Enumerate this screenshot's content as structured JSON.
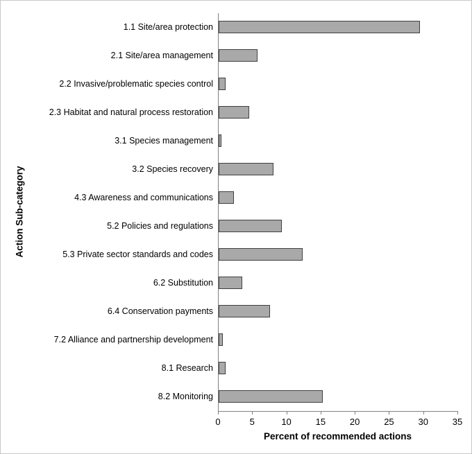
{
  "figure": {
    "background": "#ffffff",
    "border_color": "#c8c8c8"
  },
  "chart_data": {
    "type": "bar",
    "orientation": "horizontal",
    "title": "",
    "xlabel": "Percent of recommended actions",
    "ylabel": "Action Sub-category",
    "categories": [
      "1.1 Site/area protection",
      "2.1 Site/area management",
      "2.2 Invasive/problematic species control",
      "2.3 Habitat and natural process restoration",
      "3.1 Species management",
      "3.2 Species recovery",
      "4.3 Awareness and communications",
      "5.2 Policies and regulations",
      "5.3 Private sector standards and codes",
      "6.2 Substitution",
      "6.4 Conservation payments",
      "7.2 Alliance and partnership development",
      "8.1 Research",
      "8.2 Monitoring"
    ],
    "values": [
      29.4,
      5.7,
      1.0,
      4.5,
      0.4,
      8.0,
      2.2,
      9.2,
      12.3,
      3.4,
      7.5,
      0.6,
      1.0,
      15.2
    ],
    "xlim": [
      0,
      35
    ],
    "xticks": [
      0,
      5,
      10,
      15,
      20,
      25,
      30,
      35
    ],
    "grid": false,
    "legend_position": "none",
    "bar_fill": "#a9a9a9",
    "bar_border": "#3f3f3f",
    "axis_color": "#808080",
    "text_color": "#000000"
  }
}
